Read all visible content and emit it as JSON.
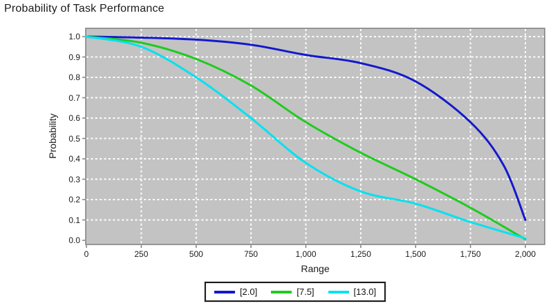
{
  "chart_data": {
    "type": "line",
    "title": "Probability of Task Performance",
    "xlabel": "Range",
    "ylabel": "Probability",
    "xlim": [
      0,
      2000
    ],
    "ylim": [
      0.0,
      1.0
    ],
    "x_ticks": [
      0,
      250,
      500,
      750,
      1000,
      1250,
      1500,
      1750,
      2000
    ],
    "x_tick_labels": [
      "0",
      "250",
      "500",
      "750",
      "1,000",
      "1,250",
      "1,500",
      "1,750",
      "2,000"
    ],
    "y_ticks": [
      0.0,
      0.1,
      0.2,
      0.3,
      0.4,
      0.5,
      0.6,
      0.7,
      0.8,
      0.9,
      1.0
    ],
    "y_tick_labels": [
      "0.0",
      "0.1",
      "0.2",
      "0.3",
      "0.4",
      "0.5",
      "0.6",
      "0.7",
      "0.8",
      "0.9",
      "1.0"
    ],
    "grid": "on",
    "legend_position": "bottom-center",
    "plot_bg_color": "#c3c3c3",
    "gridline_color": "#ffffff",
    "border_color": "#7d7d7d",
    "series": [
      {
        "name": "[2.0]",
        "color": "#1318cd",
        "x": [
          0,
          250,
          500,
          750,
          1000,
          1250,
          1500,
          1750,
          1900,
          2000
        ],
        "values": [
          1.0,
          0.995,
          0.985,
          0.96,
          0.91,
          0.87,
          0.78,
          0.58,
          0.37,
          0.1
        ]
      },
      {
        "name": "[7.5]",
        "color": "#1ecb1e",
        "x": [
          0,
          250,
          500,
          750,
          1000,
          1250,
          1500,
          1750,
          2000
        ],
        "values": [
          1.0,
          0.97,
          0.89,
          0.76,
          0.58,
          0.43,
          0.3,
          0.16,
          0.005
        ]
      },
      {
        "name": "[13.0]",
        "color": "#00e2f0",
        "x": [
          0,
          250,
          500,
          750,
          1000,
          1250,
          1500,
          1750,
          2000
        ],
        "values": [
          1.0,
          0.95,
          0.8,
          0.6,
          0.38,
          0.24,
          0.18,
          0.09,
          0.01
        ]
      }
    ]
  }
}
